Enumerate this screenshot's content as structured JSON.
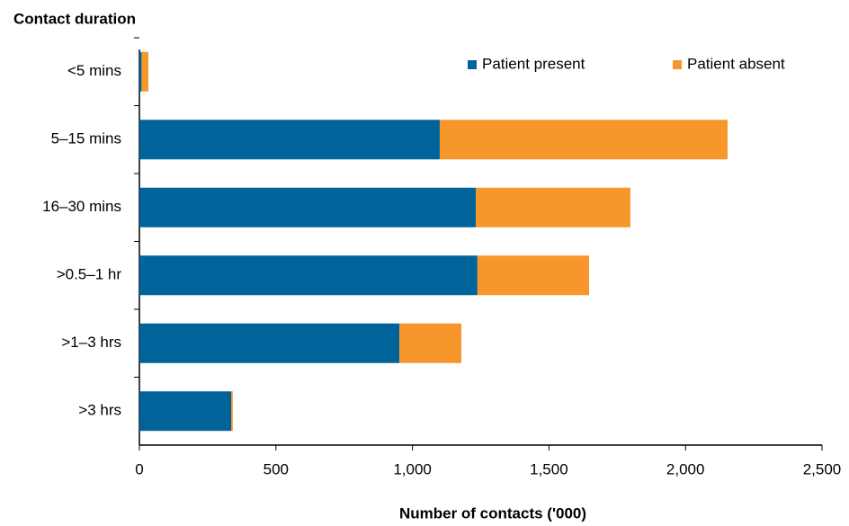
{
  "chart_data": {
    "type": "stacked-bar-horizontal",
    "y_axis_title": "Contact duration",
    "x_axis_title": "Number of contacts ('000)",
    "categories": [
      "<5 mins",
      "5–15 mins",
      "16–30 mins",
      ">0.5–1 hr",
      ">1–3 hrs",
      ">3 hrs"
    ],
    "series": [
      {
        "name": "Patient present",
        "color": "#00639a",
        "values": [
          8,
          1100,
          1232,
          1238,
          952,
          336
        ]
      },
      {
        "name": "Patient absent",
        "color": "#f7962a",
        "values": [
          25,
          1054,
          566,
          409,
          227,
          6
        ]
      }
    ],
    "xlim": [
      0,
      2500
    ],
    "xticks": [
      0,
      500,
      {
        "value": 1000,
        "label": "1,000"
      },
      {
        "value": 1500,
        "label": "1,500"
      },
      {
        "value": 2000,
        "label": "2,000"
      },
      {
        "value": 2500,
        "label": "2,500"
      }
    ],
    "legend": "top-right"
  }
}
